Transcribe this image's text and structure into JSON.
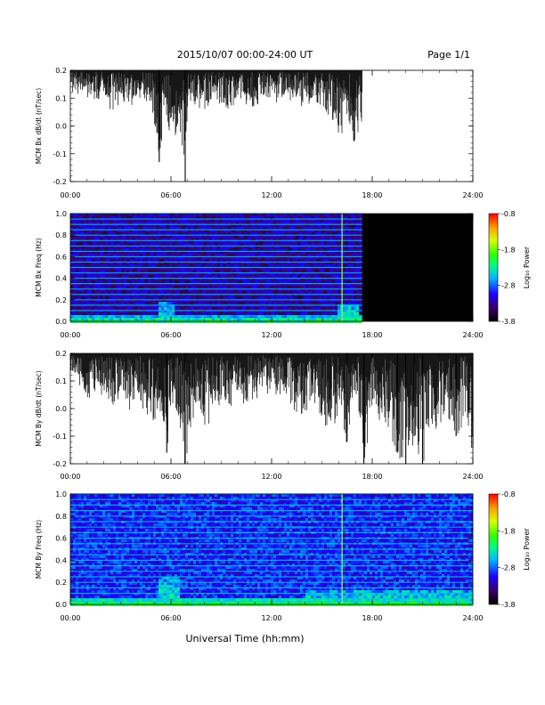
{
  "header": {
    "date_range": "2015/10/07  00:00-24:00 UT",
    "page": "Page 1/1"
  },
  "xlabel": "Universal Time (hh:mm)",
  "chart_data": [
    {
      "type": "line",
      "id": "bx-dbdt",
      "ylabel": "MCM Bx dB/dt (nT/sec)",
      "ylim": [
        -0.2,
        0.2
      ],
      "yticks": [
        "-0.2",
        "-0.1",
        "0.0",
        "0.1",
        "0.2"
      ],
      "xticks": [
        "00:00",
        "06:00",
        "12:00",
        "18:00",
        "24:00"
      ],
      "xlim_hours": [
        0,
        24
      ],
      "data_coverage_hours": [
        0,
        17.4
      ],
      "upper_envelope_clipped_at": 0.2,
      "x_hours": [
        0.0,
        0.5,
        1.0,
        1.5,
        2.0,
        2.5,
        3.0,
        3.5,
        4.0,
        4.5,
        5.0,
        5.3,
        5.6,
        6.0,
        6.5,
        6.85,
        7.0,
        7.5,
        8.0,
        8.5,
        9.0,
        9.5,
        10.0,
        10.5,
        11.0,
        11.5,
        12.0,
        12.5,
        13.0,
        13.5,
        14.0,
        14.5,
        15.0,
        15.5,
        16.0,
        16.2,
        16.6,
        17.0,
        17.4
      ],
      "lower_envelope": [
        0.14,
        0.11,
        0.12,
        0.09,
        0.12,
        0.06,
        0.1,
        0.08,
        0.11,
        0.09,
        0.02,
        -0.13,
        0.05,
        -0.03,
        0.0,
        -0.2,
        0.1,
        0.08,
        0.07,
        0.1,
        0.09,
        0.06,
        0.1,
        0.08,
        0.07,
        0.1,
        0.09,
        0.11,
        0.1,
        0.09,
        0.08,
        0.09,
        0.07,
        0.05,
        -0.02,
        -0.06,
        0.01,
        -0.06,
        0.0
      ]
    },
    {
      "type": "heatmap",
      "id": "bx-spectrogram",
      "ylabel": "MCM Bx Freq (Hz)",
      "ylim": [
        0.0,
        1.0
      ],
      "yticks": [
        "0.0",
        "0.2",
        "0.4",
        "0.6",
        "0.8",
        "1.0"
      ],
      "xticks": [
        "00:00",
        "06:00",
        "12:00",
        "18:00",
        "24:00"
      ],
      "xlim_hours": [
        0,
        24
      ],
      "data_coverage_hours": [
        0,
        17.4
      ],
      "colorbar": {
        "label": "Log₁₀ Power",
        "range": [
          -3.8,
          -0.8
        ],
        "ticks": [
          "-0.8",
          "-1.8",
          "-2.8",
          "-3.8"
        ]
      },
      "harmonic_lines_hz": [
        0.05,
        0.1,
        0.15,
        0.2,
        0.25,
        0.3,
        0.35,
        0.4,
        0.45,
        0.5,
        0.55,
        0.6,
        0.65,
        0.7,
        0.75,
        0.8,
        0.85,
        0.9,
        0.95,
        1.0
      ],
      "background_log_power": -3.3,
      "low_freq_enhancement": [
        {
          "hour_start": 0.0,
          "hour_end": 17.4,
          "max_hz": 0.05,
          "log_power": -2.2
        },
        {
          "hour_start": 5.2,
          "hour_end": 6.2,
          "max_hz": 0.18,
          "log_power": -2.4
        },
        {
          "hour_start": 15.8,
          "hour_end": 17.2,
          "max_hz": 0.15,
          "log_power": -2.2
        }
      ],
      "vertical_spike_hour": 16.2
    },
    {
      "type": "line",
      "id": "by-dbdt",
      "ylabel": "MCM By dB/dt (nT/sec)",
      "ylim": [
        -0.2,
        0.2
      ],
      "yticks": [
        "-0.2",
        "-0.1",
        "0.0",
        "0.1",
        "0.2"
      ],
      "xticks": [
        "00:00",
        "06:00",
        "12:00",
        "18:00",
        "24:00"
      ],
      "xlim_hours": [
        0,
        24
      ],
      "data_coverage_hours": [
        0,
        24
      ],
      "upper_envelope_clipped_at": 0.2,
      "x_hours": [
        0.0,
        0.5,
        1.0,
        1.5,
        2.0,
        2.5,
        3.0,
        3.5,
        4.0,
        4.5,
        5.0,
        5.5,
        5.75,
        6.0,
        6.5,
        6.85,
        7.5,
        8.0,
        8.5,
        9.0,
        9.5,
        10.0,
        10.5,
        11.0,
        11.5,
        12.0,
        12.5,
        13.0,
        13.5,
        14.0,
        14.5,
        15.0,
        15.5,
        16.0,
        16.5,
        17.0,
        17.5,
        18.0,
        18.5,
        19.0,
        19.5,
        20.0,
        20.5,
        21.0,
        21.5,
        22.0,
        22.5,
        23.0,
        23.5,
        24.0
      ],
      "lower_envelope": [
        0.13,
        0.1,
        0.05,
        0.08,
        0.04,
        0.02,
        0.06,
        0.01,
        0.03,
        0.0,
        -0.05,
        -0.02,
        -0.16,
        0.02,
        -0.03,
        -0.2,
        0.03,
        -0.05,
        -0.02,
        0.04,
        0.01,
        0.06,
        0.02,
        0.05,
        0.07,
        0.06,
        0.03,
        0.05,
        -0.01,
        -0.02,
        0.02,
        -0.06,
        -0.03,
        -0.05,
        -0.12,
        0.05,
        -0.2,
        0.02,
        -0.05,
        -0.08,
        -0.16,
        -0.2,
        -0.1,
        -0.2,
        -0.05,
        -0.06,
        -0.01,
        -0.1,
        -0.02,
        -0.14
      ]
    },
    {
      "type": "heatmap",
      "id": "by-spectrogram",
      "ylabel": "MCM By Freq (Hz)",
      "ylim": [
        0.0,
        1.0
      ],
      "yticks": [
        "0.0",
        "0.2",
        "0.4",
        "0.6",
        "0.8",
        "1.0"
      ],
      "xticks": [
        "00:00",
        "06:00",
        "12:00",
        "18:00",
        "24:00"
      ],
      "xlim_hours": [
        0,
        24
      ],
      "data_coverage_hours": [
        0,
        24
      ],
      "colorbar": {
        "label": "Log₁₀ Power",
        "range": [
          -3.8,
          -0.8
        ],
        "ticks": [
          "-0.8",
          "-1.8",
          "-2.8",
          "-3.8"
        ]
      },
      "harmonic_lines_hz": [
        0.025,
        0.05,
        0.1,
        0.15,
        0.2,
        0.25,
        0.3,
        0.35,
        0.4,
        0.45,
        0.5,
        0.55,
        0.6,
        0.65,
        0.7,
        0.75,
        0.8,
        0.85,
        0.9,
        0.95,
        1.0
      ],
      "background_log_power": -3.0,
      "low_freq_enhancement": [
        {
          "hour_start": 0.0,
          "hour_end": 24.0,
          "max_hz": 0.06,
          "log_power": -2.1
        },
        {
          "hour_start": 5.2,
          "hour_end": 6.5,
          "max_hz": 0.25,
          "log_power": -2.4
        },
        {
          "hour_start": 14.0,
          "hour_end": 24.0,
          "max_hz": 0.14,
          "log_power": -2.4
        }
      ],
      "vertical_spike_hour": 16.2
    }
  ]
}
